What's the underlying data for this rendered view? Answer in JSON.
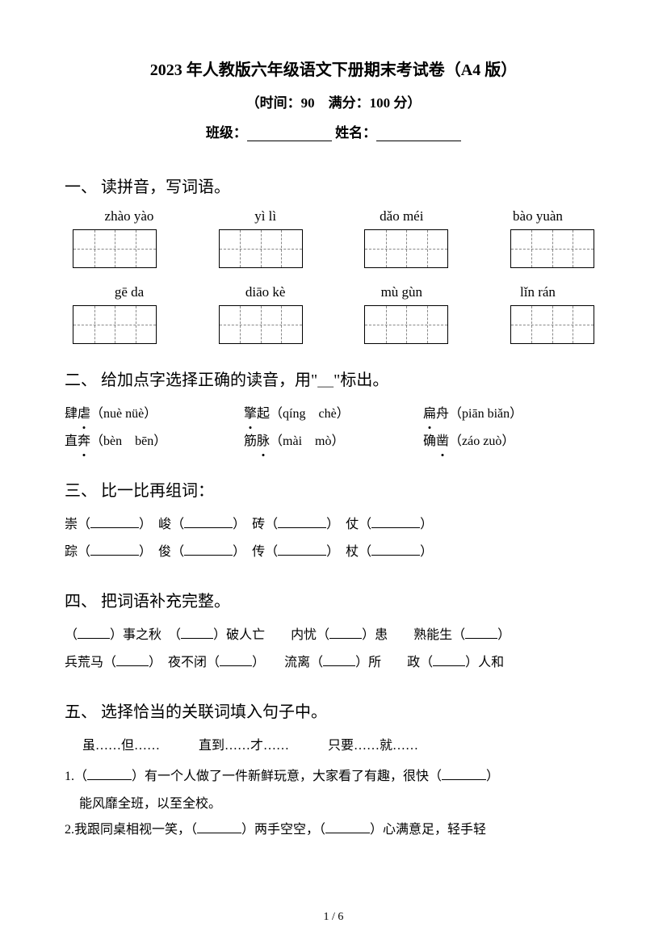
{
  "header": {
    "title": "2023 年人教版六年级语文下册期末考试卷（A4 版）",
    "subtitle_prefix": "（时间：",
    "time": "90",
    "subtitle_mid": "　满分：",
    "score": "100 分",
    "subtitle_suffix": "）",
    "class_label": "班级：",
    "name_label": "姓名："
  },
  "section1": {
    "heading": "一、 读拼音，写词语。",
    "pinyin_row1": [
      "zhào yào",
      "yì lì",
      "dǎo méi",
      "bào yuàn"
    ],
    "pinyin_row2": [
      "gē da",
      "diāo kè",
      "mù gùn",
      "lǐn rán"
    ]
  },
  "section2": {
    "heading": "二、 给加点字选择正确的读音，用\"＿\"标出。",
    "row1": {
      "a": {
        "prefix": "肆",
        "char": "虐",
        "options": "（nuè nüè）"
      },
      "b": {
        "char": "擎",
        "suffix": "起",
        "options": "（qíng　chè）"
      },
      "c": {
        "char": "扁",
        "suffix": "舟",
        "options": "（piān biǎn）"
      }
    },
    "row2": {
      "a": {
        "prefix": "直",
        "char": "奔",
        "options": "（bèn　bēn）"
      },
      "b": {
        "prefix": "筋",
        "char": "脉",
        "options": "（mài　mò）"
      },
      "c": {
        "prefix": "确",
        "char": "凿",
        "options": "（záo zuò）"
      }
    }
  },
  "section3": {
    "heading": "三、 比一比再组词：",
    "row1": [
      "崇",
      "峻",
      "砖",
      "仗"
    ],
    "row2": [
      "踪",
      "俊",
      "传",
      "杖"
    ]
  },
  "section4": {
    "heading": "四、 把词语补充完整。",
    "items": [
      [
        "（",
        "）事之秋",
        "（",
        "）破人亡",
        "内忧（",
        "）患",
        "熟能生（",
        "）"
      ],
      [
        "兵荒马（",
        "）",
        "夜不闭（",
        "）",
        "流离（",
        "）所",
        "政（",
        "）人和"
      ]
    ]
  },
  "section5": {
    "heading": "五、 选择恰当的关联词填入句子中。",
    "options": "虽……但……　　　直到……才……　　　只要……就……",
    "q1_part1": "1.（",
    "q1_part2": "）有一个人做了一件新鲜玩意，大家看了有趣，很快（",
    "q1_part3": "）",
    "q1_line2": "能风靡全班，以至全校。",
    "q2_part1": "2.我跟同桌相视一笑，（",
    "q2_part2": "）两手空空，（",
    "q2_part3": "）心满意足，轻手轻"
  },
  "footer": {
    "page": "1 / 6"
  },
  "style": {
    "bg": "#ffffff",
    "text_color": "#000000",
    "title_fontsize": 20,
    "body_fontsize": 16,
    "heading_fontsize": 20,
    "line_height": 2
  }
}
